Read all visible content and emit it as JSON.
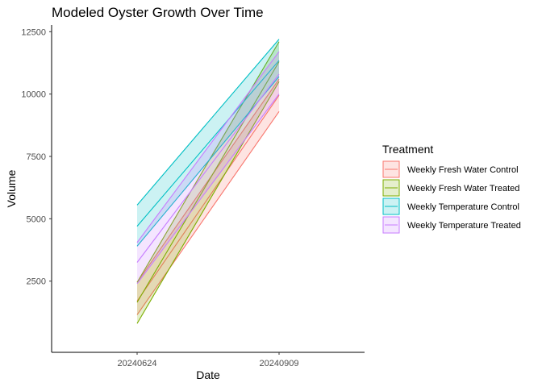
{
  "chart_data": {
    "type": "area",
    "title": "Modeled Oyster Growth Over Time",
    "xlabel": "Date",
    "ylabel": "Volume",
    "categories": [
      "20240624",
      "20240909"
    ],
    "yticks": [
      2500,
      5000,
      7500,
      10000,
      12500
    ],
    "ylim": [
      -355,
      12770
    ],
    "grid": false,
    "legend": {
      "title": "Treatment",
      "position": "right",
      "entries": [
        "Weekly Fresh Water Control",
        "Weekly Fresh Water Treated",
        "Weekly Temperature Control",
        "Weekly Temperature Treated"
      ]
    },
    "series": [
      {
        "name": "Weekly Fresh Water Control",
        "color": "#F8766D",
        "lower": [
          1150,
          9300
        ],
        "mid": [
          1700,
          9950
        ],
        "upper": [
          2450,
          10600
        ]
      },
      {
        "name": "Weekly Fresh Water Treated",
        "color": "#7CAE00",
        "lower": [
          800,
          10500
        ],
        "mid": [
          1650,
          11300
        ],
        "upper": [
          2450,
          12100
        ]
      },
      {
        "name": "Weekly Temperature Control",
        "color": "#00BFC4",
        "lower": [
          3900,
          10700
        ],
        "mid": [
          4700,
          11350
        ],
        "upper": [
          5550,
          12200
        ]
      },
      {
        "name": "Weekly Temperature Treated",
        "color": "#C77CFF",
        "lower": [
          2400,
          10000
        ],
        "mid": [
          3250,
          10800
        ],
        "upper": [
          4050,
          11700
        ]
      }
    ]
  }
}
